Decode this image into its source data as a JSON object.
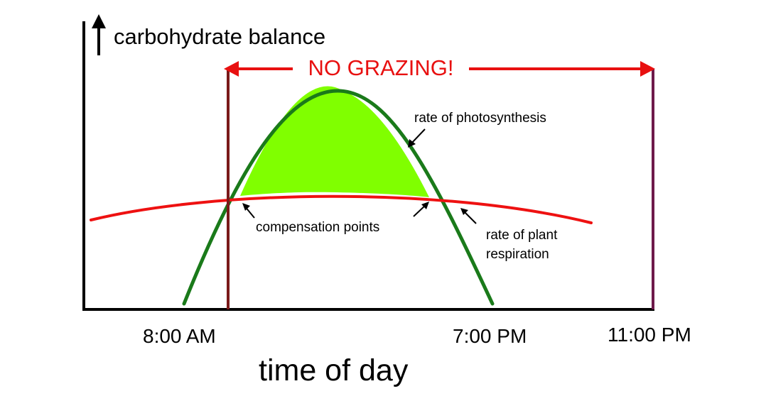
{
  "diagram": {
    "y_axis_label": "carbohydrate balance",
    "x_axis_label": "time of day",
    "banner": "NO GRAZING!",
    "labels": {
      "photosynthesis": "rate of photosynthesis",
      "compensation": "compensation points",
      "respiration_line1": "rate of plant",
      "respiration_line2": "respiration"
    },
    "times": {
      "start": "8:00 AM",
      "mid": "7:00 PM",
      "end": "11:00 PM"
    },
    "colors": {
      "axis": "#000000",
      "photosynthesis_curve": "#1a7a1a",
      "surplus_fill": "#80ff00",
      "respiration_curve": "#ee1111",
      "banner": "#e81010",
      "grazing_bound_left": "#7a1a1a",
      "grazing_bound_right": "#6e1a4a"
    }
  }
}
